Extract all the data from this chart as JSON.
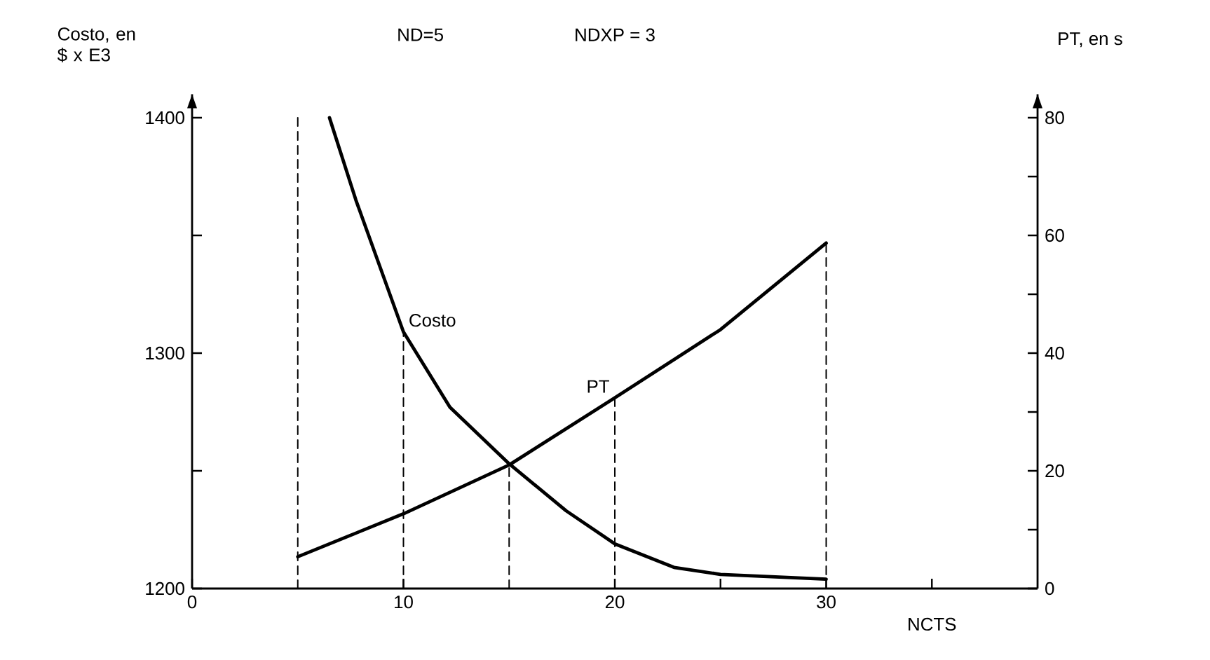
{
  "chart_data": {
    "type": "line",
    "xlabel": "NCTS",
    "ylabel": "Costo, en $ x E3",
    "y2label": "PT, en s",
    "annotations": [
      "ND=5",
      "NDXP = 3"
    ],
    "xlim": [
      0,
      40
    ],
    "xticks": [
      0,
      10,
      20,
      30,
      {
        "value": 25,
        "label": null
      },
      {
        "value": 35,
        "label": null
      }
    ],
    "ylim": [
      1200,
      1410
    ],
    "yticks": [
      1200,
      1300,
      1400,
      {
        "value": 1250,
        "label": null
      },
      {
        "value": 1350,
        "label": null
      }
    ],
    "y2lim": [
      0,
      84
    ],
    "y2ticks": [
      0,
      20,
      40,
      60,
      80,
      {
        "value": 10,
        "label": null
      },
      {
        "value": 30,
        "label": null
      },
      {
        "value": 50,
        "label": null
      },
      {
        "value": 70,
        "label": null
      }
    ],
    "grid": false,
    "marker": "none",
    "line_style": "solid",
    "series": [
      {
        "name": "Costo",
        "color": "#000000",
        "x": [
          6.5,
          7.75,
          10,
          12.2,
          15,
          17.7,
          20,
          22.8,
          25,
          30
        ],
        "values": [
          1400,
          1365,
          1309,
          1277,
          1253,
          1233,
          1219,
          1209,
          1206,
          1204
        ]
      },
      {
        "name": "PT",
        "color": "#000000",
        "axis": "y2",
        "x": [
          5,
          10,
          15,
          20,
          25,
          30
        ],
        "values": [
          5.4,
          12.7,
          21,
          32.4,
          44,
          58.7
        ]
      },
      {
        "color": "#000000",
        "line_style": "dashed",
        "x": [
          5,
          5
        ],
        "values": [
          1200,
          1400
        ]
      },
      {
        "color": "#000000",
        "line_style": "dashed",
        "x": [
          10,
          10
        ],
        "values": [
          1200,
          1309
        ]
      },
      {
        "color": "#000000",
        "line_style": "dashed",
        "x": [
          15,
          15
        ],
        "values": [
          1200,
          1253
        ]
      },
      {
        "color": "#000000",
        "line_style": "dashed",
        "axis": "y2",
        "x": [
          20,
          20
        ],
        "values": [
          0,
          32.4
        ]
      },
      {
        "color": "#000000",
        "line_style": "dashed",
        "axis": "y2",
        "x": [
          30,
          30
        ],
        "values": [
          0,
          58.7
        ]
      }
    ]
  }
}
